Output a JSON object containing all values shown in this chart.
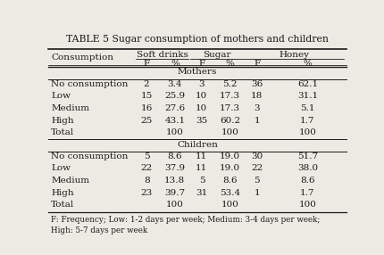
{
  "title": "TABLE 5 Sugar consumption of mothers and children",
  "group_headers": [
    "Soft drinks",
    "Sugar",
    "Honey"
  ],
  "mothers_label": "Mothers",
  "children_label": "Children",
  "mothers_rows": [
    [
      "No consumption",
      "2",
      "3.4",
      "3",
      "5.2",
      "36",
      "62.1"
    ],
    [
      "Low",
      "15",
      "25.9",
      "10",
      "17.3",
      "18",
      "31.1"
    ],
    [
      "Medium",
      "16",
      "27.6",
      "10",
      "17.3",
      "3",
      "5.1"
    ],
    [
      "High",
      "25",
      "43.1",
      "35",
      "60.2",
      "1",
      "1.7"
    ],
    [
      "Total",
      "",
      "100",
      "",
      "100",
      "",
      "100"
    ]
  ],
  "children_rows": [
    [
      "No consumption",
      "5",
      "8.6",
      "11",
      "19.0",
      "30",
      "51.7"
    ],
    [
      "Low",
      "22",
      "37.9",
      "11",
      "19.0",
      "22",
      "38.0"
    ],
    [
      "Medium",
      "8",
      "13.8",
      "5",
      "8.6",
      "5",
      "8.6"
    ],
    [
      "High",
      "23",
      "39.7",
      "31",
      "53.4",
      "1",
      "1.7"
    ],
    [
      "Total",
      "",
      "100",
      "",
      "100",
      "",
      "100"
    ]
  ],
  "footnote_line1": "F: Frequency; Low: 1-2 days per week; Medium: 3-4 days per week;",
  "footnote_line2": "High: 5-7 days per week",
  "bg_color": "#edeae4",
  "text_color": "#1a1a1a",
  "font_size": 7.5
}
